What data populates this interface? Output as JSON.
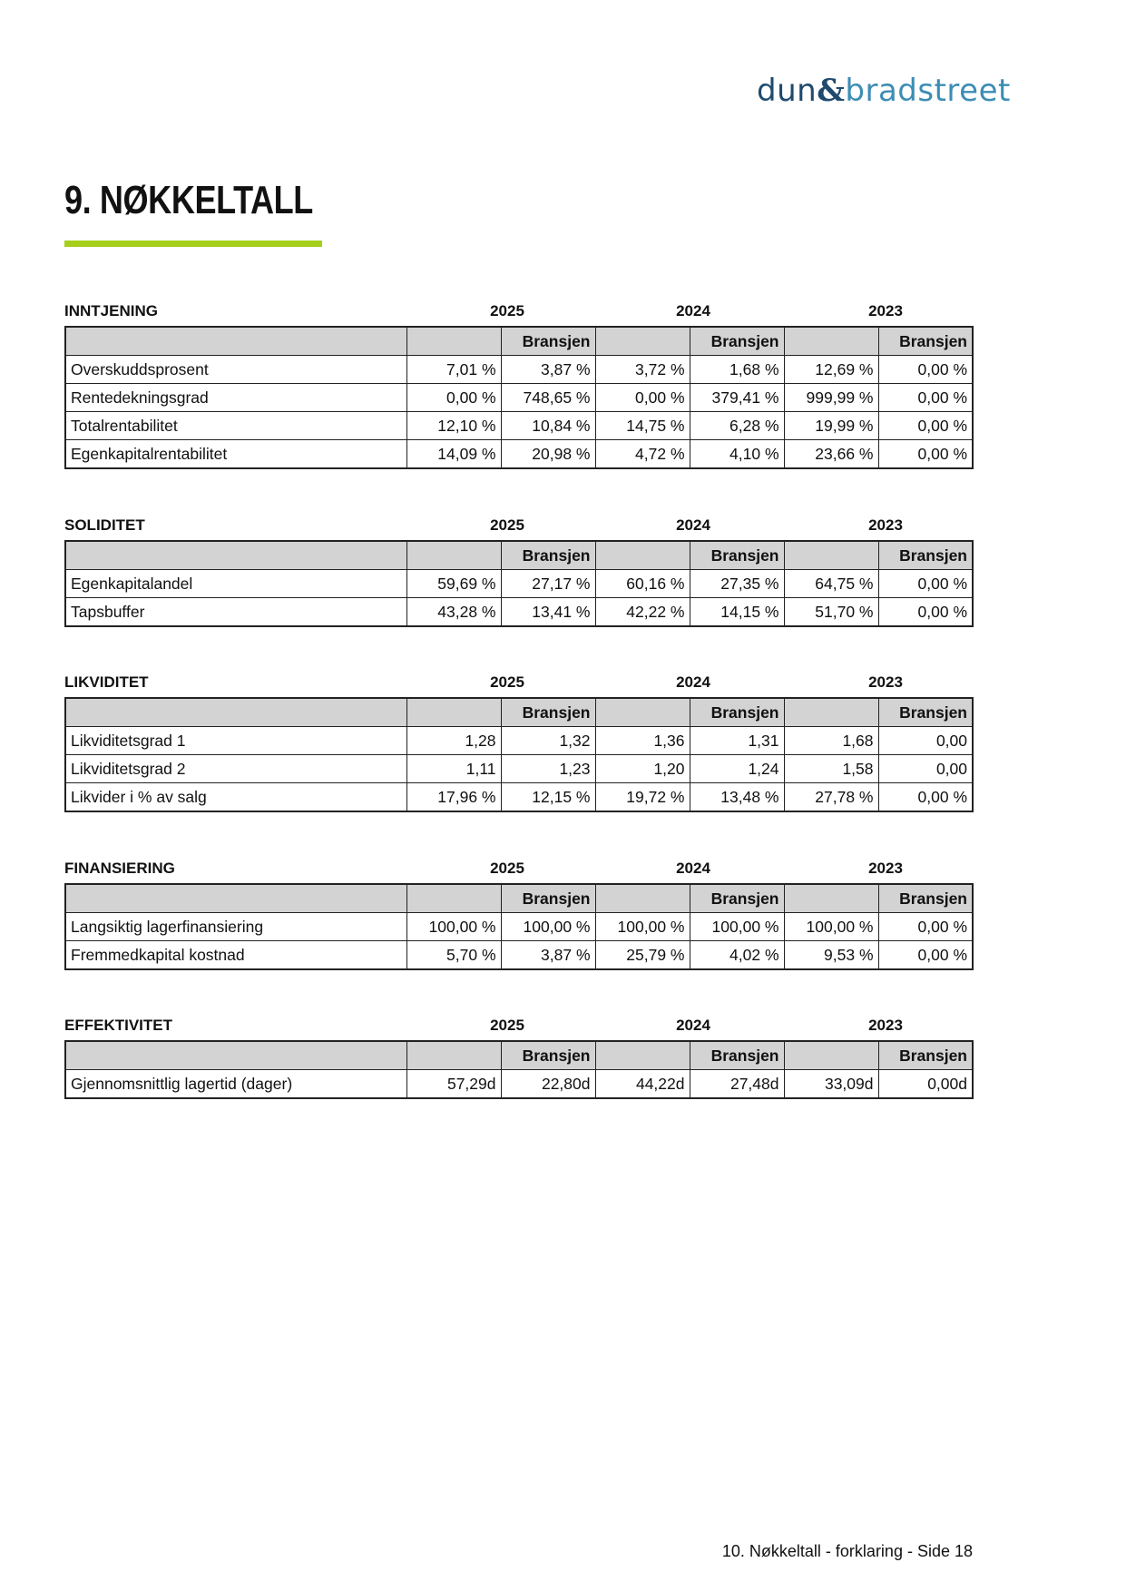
{
  "logo": {
    "text": "dun & bradstreet",
    "part1": "dun",
    "amp": "&",
    "part2": "bradstreet",
    "colors": {
      "dark": "#1f4a6e",
      "light": "#3c8db4"
    }
  },
  "title": "9. NØKKELTALL",
  "accent_color": "#a6cf1c",
  "years": [
    "2025",
    "2024",
    "2023"
  ],
  "bransjen_label": "Bransjen",
  "sections": [
    {
      "name": "INNTJENING",
      "rows": [
        {
          "label": "Overskuddsprosent",
          "values": [
            "7,01 %",
            "3,87 %",
            "3,72 %",
            "1,68 %",
            "12,69 %",
            "0,00 %"
          ]
        },
        {
          "label": "Rentedekningsgrad",
          "values": [
            "0,00 %",
            "748,65 %",
            "0,00 %",
            "379,41 %",
            "999,99 %",
            "0,00 %"
          ]
        },
        {
          "label": "Totalrentabilitet",
          "values": [
            "12,10 %",
            "10,84 %",
            "14,75 %",
            "6,28 %",
            "19,99 %",
            "0,00 %"
          ]
        },
        {
          "label": "Egenkapitalrentabilitet",
          "values": [
            "14,09 %",
            "20,98 %",
            "4,72 %",
            "4,10 %",
            "23,66 %",
            "0,00 %"
          ]
        }
      ]
    },
    {
      "name": "SOLIDITET",
      "rows": [
        {
          "label": "Egenkapitalandel",
          "values": [
            "59,69 %",
            "27,17 %",
            "60,16 %",
            "27,35 %",
            "64,75 %",
            "0,00 %"
          ]
        },
        {
          "label": "Tapsbuffer",
          "values": [
            "43,28 %",
            "13,41 %",
            "42,22 %",
            "14,15 %",
            "51,70 %",
            "0,00 %"
          ]
        }
      ]
    },
    {
      "name": "LIKVIDITET",
      "rows": [
        {
          "label": "Likviditetsgrad 1",
          "values": [
            "1,28",
            "1,32",
            "1,36",
            "1,31",
            "1,68",
            "0,00"
          ]
        },
        {
          "label": "Likviditetsgrad 2",
          "values": [
            "1,11",
            "1,23",
            "1,20",
            "1,24",
            "1,58",
            "0,00"
          ]
        },
        {
          "label": "Likvider i % av salg",
          "values": [
            "17,96 %",
            "12,15 %",
            "19,72 %",
            "13,48 %",
            "27,78 %",
            "0,00 %"
          ]
        }
      ]
    },
    {
      "name": "FINANSIERING",
      "rows": [
        {
          "label": "Langsiktig lagerfinansiering",
          "values": [
            "100,00 %",
            "100,00 %",
            "100,00 %",
            "100,00 %",
            "100,00 %",
            "0,00 %"
          ]
        },
        {
          "label": "Fremmedkapital kostnad",
          "values": [
            "5,70 %",
            "3,87 %",
            "25,79 %",
            "4,02 %",
            "9,53 %",
            "0,00 %"
          ]
        }
      ]
    },
    {
      "name": "EFFEKTIVITET",
      "rows": [
        {
          "label": "Gjennomsnittlig lagertid (dager)",
          "values": [
            "57,29d",
            "22,80d",
            "44,22d",
            "27,48d",
            "33,09d",
            "0,00d"
          ]
        }
      ]
    }
  ],
  "footer": "10. Nøkkeltall - forklaring - Side 18"
}
